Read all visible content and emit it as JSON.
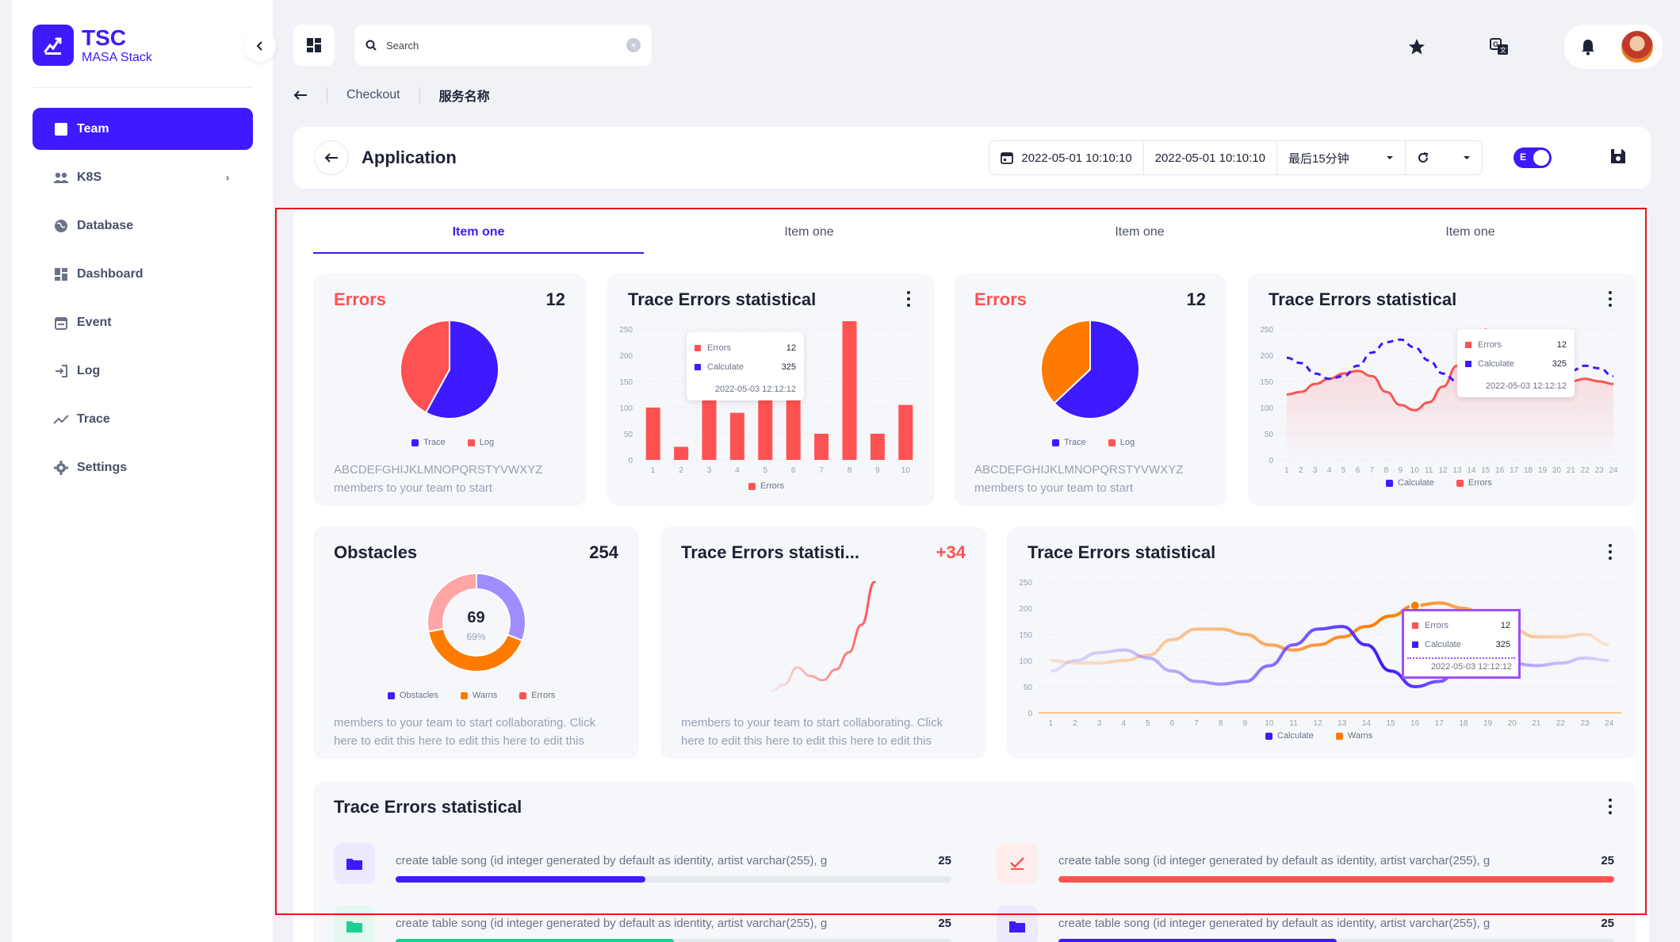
{
  "app": {
    "title": "TSC",
    "subtitle": "MASA Stack"
  },
  "sidebar": {
    "items": [
      {
        "label": "Team",
        "icon": "square-icon",
        "active": true
      },
      {
        "label": "K8S",
        "icon": "users-icon",
        "has_children": true
      },
      {
        "label": "Database",
        "icon": "globe-icon"
      },
      {
        "label": "Dashboard",
        "icon": "dashboard-icon"
      },
      {
        "label": "Event",
        "icon": "calendar-icon"
      },
      {
        "label": "Log",
        "icon": "login-icon"
      },
      {
        "label": "Trace",
        "icon": "trend-icon"
      },
      {
        "label": "Settings",
        "icon": "gear-icon"
      }
    ]
  },
  "search": {
    "placeholder": "Search"
  },
  "breadcrumb": {
    "items": [
      "Checkout",
      "服务名称"
    ]
  },
  "appbar": {
    "title": "Application",
    "date_start": "2022-05-01 10:10:10",
    "date_end": "2022-05-01 10:10:10",
    "range": "最后15分钟",
    "toggle_label": "E"
  },
  "tabs": [
    "Item one",
    "Item one",
    "Item one",
    "Item one"
  ],
  "colors": {
    "primary": "#3d1aff",
    "red": "#ff5252",
    "orange": "#ff7b00",
    "purple": "#a08cff"
  },
  "cards": {
    "errors1": {
      "title": "Errors",
      "value": "12",
      "desc1": "ABCDEFGHIJKLMNOPQRSTYVWXYZ",
      "desc2": "members to your team to start",
      "legend": [
        "Trace",
        "Log"
      ]
    },
    "trace1": {
      "title": "Trace Errors statistical",
      "legend": [
        "Errors"
      ],
      "tooltip": {
        "errors_label": "Errors",
        "errors_value": "12",
        "calc_label": "Calculate",
        "calc_value": "325",
        "time": "2022-05-03 12:12:12"
      }
    },
    "errors2": {
      "title": "Errors",
      "value": "12",
      "desc1": "ABCDEFGHIJKLMNOPQRSTYVWXYZ",
      "desc2": "members to your team to start",
      "legend": [
        "Trace",
        "Log"
      ]
    },
    "trace2": {
      "title": "Trace Errors statistical",
      "legend": [
        "Calculate",
        "Errors"
      ],
      "tooltip": {
        "errors_label": "Errors",
        "errors_value": "12",
        "calc_label": "Calculate",
        "calc_value": "325",
        "time": "2022-05-03 12:12:12"
      }
    },
    "obstacles": {
      "title": "Obstacles",
      "value": "254",
      "center_value": "69",
      "center_pct": "69%",
      "legend": [
        "Obstacles",
        "Warns",
        "Errors"
      ],
      "desc1": "members to your team to start collaborating. Click",
      "desc2": "here to edit this here to edit this here to edit this"
    },
    "trace3": {
      "title": "Trace Errors statisti...",
      "value": "+34",
      "desc1": "members to your team to start collaborating. Click",
      "desc2": "here to edit this here to edit this here to edit this"
    },
    "trace4": {
      "title": "Trace Errors statistical",
      "legend": [
        "Calculate",
        "Warns"
      ],
      "tooltip": {
        "errors_label": "Errors",
        "errors_value": "12",
        "calc_label": "Calculate",
        "calc_value": "325",
        "time": "2022-05-03 12:12:12"
      }
    },
    "trace5": {
      "title": "Trace Errors statistical"
    }
  },
  "progress": [
    {
      "text": "create table song (id integer generated by default as identity, artist varchar(255), g",
      "value": "25",
      "fraction": 0.45,
      "color": "#3d1aff",
      "icon": "folder-icon",
      "icon_bg": "#eceaff"
    },
    {
      "text": "create table song (id integer generated by default as identity, artist varchar(255), g",
      "value": "25",
      "fraction": 1.0,
      "color": "#ff5252",
      "icon": "check-icon",
      "icon_bg": "#ffecec"
    },
    {
      "text": "create table song (id integer generated by default as identity, artist varchar(255), g",
      "value": "25",
      "fraction": 0.5,
      "color": "#1ccf92",
      "icon": "folder-icon",
      "icon_bg": "#e3f8f0"
    },
    {
      "text": "create table song (id integer generated by default as identity, artist varchar(255), g",
      "value": "25",
      "fraction": 0.5,
      "color": "#3d1aff",
      "icon": "folder-icon",
      "icon_bg": "#eceaff"
    }
  ],
  "chart_data": [
    {
      "type": "pie",
      "title": "Errors",
      "categories": [
        "Trace",
        "Log"
      ],
      "values": [
        58,
        42
      ]
    },
    {
      "type": "bar",
      "title": "Trace Errors statistical",
      "categories": [
        "1",
        "2",
        "3",
        "4",
        "5",
        "6",
        "7",
        "8",
        "9",
        "10"
      ],
      "series": [
        {
          "name": "Errors",
          "values": [
            100,
            25,
            175,
            90,
            160,
            120,
            50,
            265,
            50,
            105
          ]
        }
      ],
      "ylim": [
        0,
        250
      ],
      "yticks": [
        0,
        50,
        100,
        150,
        200,
        250
      ]
    },
    {
      "type": "pie",
      "title": "Errors",
      "categories": [
        "Trace",
        "Log"
      ],
      "values": [
        63,
        37
      ]
    },
    {
      "type": "line",
      "title": "Trace Errors statistical",
      "x": [
        "1",
        "2",
        "3",
        "4",
        "5",
        "6",
        "7",
        "8",
        "9",
        "10",
        "11",
        "12",
        "13",
        "14",
        "15",
        "16",
        "17",
        "18",
        "19",
        "20",
        "21",
        "22",
        "23",
        "24"
      ],
      "series": [
        {
          "name": "Calculate",
          "values": [
            195,
            185,
            165,
            155,
            160,
            180,
            205,
            225,
            230,
            215,
            190,
            165,
            150,
            170,
            200,
            225,
            230,
            210,
            190,
            175,
            170,
            180,
            175,
            160
          ]
        },
        {
          "name": "Errors",
          "values": [
            125,
            130,
            145,
            155,
            165,
            170,
            160,
            130,
            105,
            95,
            110,
            140,
            180,
            215,
            245,
            235,
            215,
            190,
            165,
            150,
            150,
            155,
            150,
            145
          ]
        }
      ],
      "ylim": [
        0,
        250
      ],
      "yticks": [
        0,
        50,
        100,
        150,
        200,
        250
      ]
    },
    {
      "type": "pie",
      "title": "Obstacles",
      "categories": [
        "Obstacles",
        "Warns",
        "Errors"
      ],
      "values": [
        31,
        41,
        28
      ]
    },
    {
      "type": "line",
      "title": "Trace Errors statisti...",
      "series": [
        {
          "values": [
            5,
            20,
            60,
            40,
            30,
            55,
            95,
            160,
            260
          ]
        }
      ]
    },
    {
      "type": "line",
      "title": "Trace Errors statistical",
      "x": [
        "1",
        "2",
        "3",
        "4",
        "5",
        "6",
        "7",
        "8",
        "9",
        "10",
        "11",
        "12",
        "13",
        "14",
        "15",
        "16",
        "17",
        "18",
        "19",
        "20",
        "21",
        "22",
        "23",
        "24"
      ],
      "series": [
        {
          "name": "Calculate",
          "values": [
            80,
            100,
            115,
            120,
            105,
            80,
            60,
            55,
            60,
            90,
            130,
            160,
            165,
            130,
            80,
            50,
            60,
            95,
            105,
            95,
            90,
            95,
            105,
            100
          ]
        },
        {
          "name": "Warns",
          "values": [
            100,
            95,
            95,
            100,
            110,
            140,
            160,
            160,
            150,
            130,
            120,
            130,
            145,
            165,
            185,
            205,
            210,
            200,
            180,
            160,
            145,
            145,
            150,
            130
          ]
        }
      ],
      "ylim": [
        0,
        250
      ],
      "yticks": [
        0,
        50,
        100,
        150,
        200,
        250
      ]
    }
  ]
}
